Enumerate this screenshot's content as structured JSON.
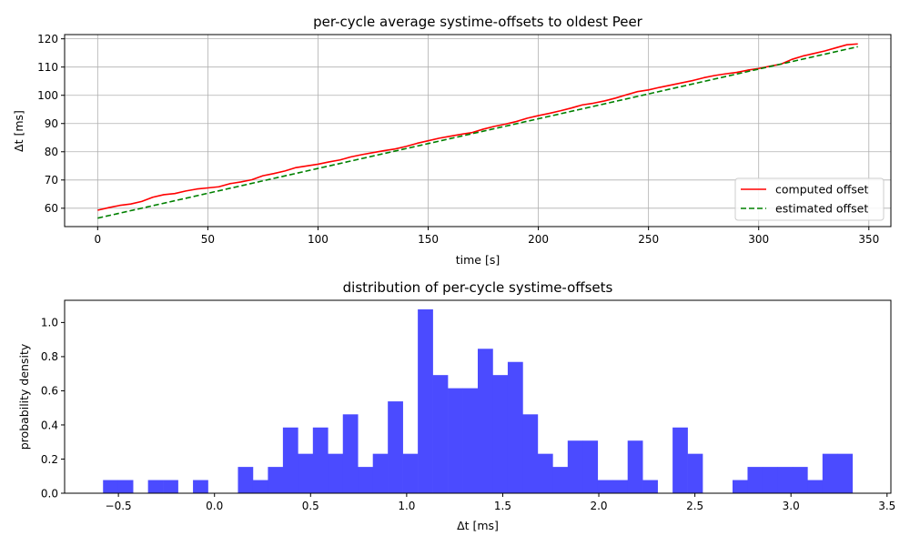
{
  "chart_data": [
    {
      "type": "line",
      "title": "per-cycle average systime-offsets to oldest Peer",
      "xlabel": "time [s]",
      "ylabel": "Δt [ms]",
      "xlim": [
        -15,
        360
      ],
      "ylim": [
        53.5,
        121.5
      ],
      "xticks": [
        0,
        50,
        100,
        150,
        200,
        250,
        300,
        350
      ],
      "xtick_labels": [
        "0",
        "50",
        "100",
        "150",
        "200",
        "250",
        "300",
        "350"
      ],
      "yticks": [
        60,
        70,
        80,
        90,
        100,
        110,
        120
      ],
      "ytick_labels": [
        "60",
        "70",
        "80",
        "90",
        "100",
        "110",
        "120"
      ],
      "grid": true,
      "legend_position": "lower-right",
      "series": [
        {
          "name": "computed offset",
          "color": "#ff0000",
          "style": "solid",
          "x": [
            0,
            5,
            10,
            15,
            20,
            25,
            30,
            35,
            40,
            45,
            50,
            55,
            60,
            65,
            70,
            75,
            80,
            85,
            90,
            95,
            100,
            105,
            110,
            115,
            120,
            125,
            130,
            135,
            140,
            145,
            150,
            155,
            160,
            165,
            170,
            175,
            180,
            185,
            190,
            195,
            200,
            205,
            210,
            215,
            220,
            225,
            230,
            235,
            240,
            245,
            250,
            255,
            260,
            265,
            270,
            275,
            280,
            285,
            290,
            295,
            300,
            305,
            310,
            315,
            320,
            325,
            330,
            335,
            340,
            345
          ],
          "y": [
            59.3,
            60.2,
            61.0,
            61.5,
            62.4,
            63.9,
            64.8,
            65.2,
            66.1,
            66.8,
            67.2,
            67.6,
            68.7,
            69.3,
            70.1,
            71.5,
            72.3,
            73.2,
            74.4,
            75.0,
            75.6,
            76.4,
            77.1,
            78.2,
            79.0,
            79.7,
            80.4,
            81.0,
            81.9,
            83.0,
            83.9,
            84.8,
            85.5,
            86.2,
            86.8,
            88.0,
            89.0,
            89.8,
            90.7,
            91.9,
            92.8,
            93.6,
            94.5,
            95.5,
            96.6,
            97.2,
            98.0,
            99.0,
            100.2,
            101.3,
            101.9,
            102.8,
            103.6,
            104.4,
            105.2,
            106.2,
            107.0,
            107.6,
            108.1,
            108.9,
            109.5,
            110.3,
            111.0,
            112.7,
            113.9,
            114.8,
            115.7,
            116.8,
            117.9,
            118.2
          ]
        },
        {
          "name": "estimated offset",
          "color": "#008000",
          "style": "dashed",
          "x": [
            0,
            345
          ],
          "y": [
            56.5,
            117.2
          ]
        }
      ]
    },
    {
      "type": "bar",
      "subtype": "histogram",
      "title": "distribution of per-cycle systime-offsets",
      "xlabel": "Δt [ms]",
      "ylabel": "probability density",
      "xlim": [
        -0.78,
        3.52
      ],
      "ylim": [
        0,
        1.13
      ],
      "xticks": [
        -0.5,
        0.0,
        0.5,
        1.0,
        1.5,
        2.0,
        2.5,
        3.0,
        3.5
      ],
      "xtick_labels": [
        "−0.5",
        "0.0",
        "0.5",
        "1.0",
        "1.5",
        "2.0",
        "2.5",
        "3.0",
        "3.5"
      ],
      "yticks": [
        0.0,
        0.2,
        0.4,
        0.6,
        0.8,
        1.0
      ],
      "ytick_labels": [
        "0.0",
        "0.2",
        "0.4",
        "0.6",
        "0.8",
        "1.0"
      ],
      "grid": false,
      "color": "#4b4bff",
      "bin_start": -0.58,
      "bin_width": 0.078,
      "values": [
        0.077,
        0.077,
        0,
        0.077,
        0.077,
        0,
        0.077,
        0,
        0,
        0.154,
        0.077,
        0.154,
        0.385,
        0.231,
        0.385,
        0.231,
        0.462,
        0.154,
        0.231,
        0.538,
        0.231,
        1.077,
        0.692,
        0.615,
        0.615,
        0.846,
        0.692,
        0.769,
        0.462,
        0.231,
        0.154,
        0.308,
        0.308,
        0.077,
        0.077,
        0.308,
        0.077,
        0,
        0.385,
        0.231,
        0,
        0,
        0.077,
        0.154,
        0.154,
        0.154,
        0.154,
        0.077,
        0.231,
        0.231
      ]
    }
  ]
}
